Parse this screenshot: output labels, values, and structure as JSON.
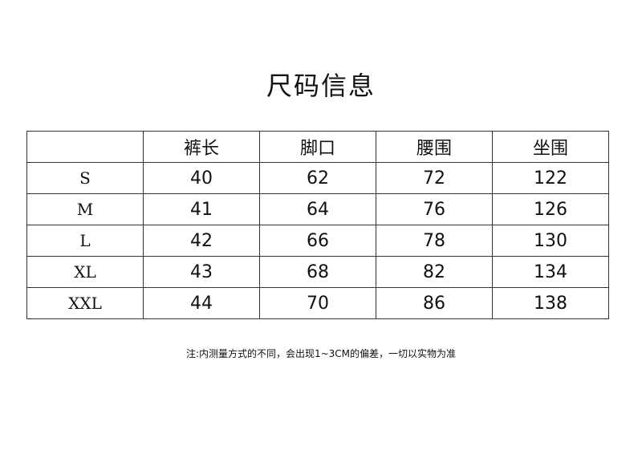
{
  "title": "尺码信息",
  "table": {
    "headers": [
      "",
      "裤长",
      "脚口",
      "腰围",
      "坐围"
    ],
    "rows": [
      [
        "S",
        "40",
        "62",
        "72",
        "122"
      ],
      [
        "M",
        "41",
        "64",
        "76",
        "126"
      ],
      [
        "L",
        "42",
        "66",
        "78",
        "130"
      ],
      [
        "XL",
        "43",
        "68",
        "82",
        "134"
      ],
      [
        "XXL",
        "44",
        "70",
        "86",
        "138"
      ]
    ]
  },
  "note": "注:内测量方式的不同，会出现1~3CM的偏差，一切以实物为准"
}
